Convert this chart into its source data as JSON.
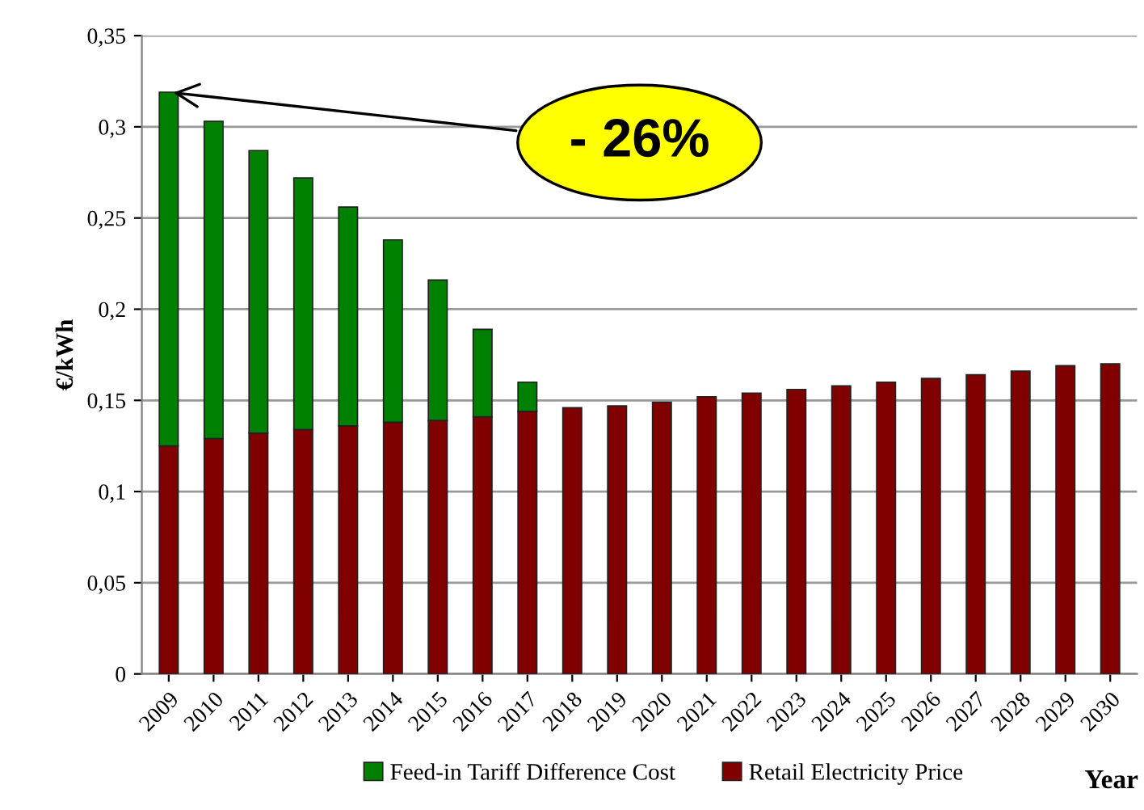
{
  "chart_data": {
    "type": "bar",
    "stacked": true,
    "ylabel": "€/kWh",
    "xlabel": "Year",
    "categories": [
      "2009",
      "2010",
      "2011",
      "2012",
      "2013",
      "2014",
      "2015",
      "2016",
      "2017",
      "2018",
      "2019",
      "2020",
      "2021",
      "2022",
      "2023",
      "2024",
      "2025",
      "2026",
      "2027",
      "2028",
      "2029",
      "2030"
    ],
    "series": [
      {
        "name": "Retail Electricity Price",
        "color": "#800000",
        "values": [
          0.125,
          0.129,
          0.132,
          0.134,
          0.136,
          0.138,
          0.139,
          0.141,
          0.144,
          0.146,
          0.147,
          0.149,
          0.152,
          0.154,
          0.156,
          0.158,
          0.16,
          0.162,
          0.164,
          0.166,
          0.169,
          0.17
        ]
      },
      {
        "name": "Feed-in Tariff Difference Cost",
        "color": "#008000",
        "values": [
          0.194,
          0.174,
          0.155,
          0.138,
          0.12,
          0.1,
          0.077,
          0.048,
          0.016,
          null,
          null,
          null,
          null,
          null,
          null,
          null,
          null,
          null,
          null,
          null,
          null,
          null
        ]
      }
    ],
    "ylim": [
      0,
      0.35
    ],
    "yticks": [
      0,
      {
        "value": 0.05,
        "label": "0,05"
      },
      {
        "value": 0.1,
        "label": "0,1"
      },
      {
        "value": 0.15,
        "label": "0,15"
      },
      {
        "value": 0.2,
        "label": "0,2"
      },
      {
        "value": 0.25,
        "label": "0,25"
      },
      {
        "value": 0.3,
        "label": "0,3"
      },
      {
        "value": 0.35,
        "label": "0,35"
      }
    ],
    "grid": "y",
    "legend": "bottom",
    "annotations": [
      {
        "text": "- 26%",
        "x": "2009",
        "y": 0.319
      }
    ]
  }
}
